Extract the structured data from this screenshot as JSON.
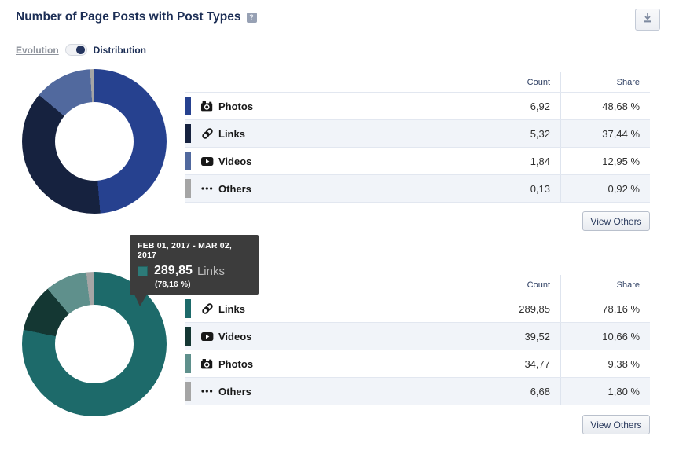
{
  "header": {
    "title": "Number of Page Posts with Post Types",
    "help_icon_glyph": "?"
  },
  "toggle": {
    "left": "Evolution",
    "right": "Distribution",
    "state": "right"
  },
  "tooltip": {
    "date_range": "FEB 01, 2017 - MAR 02, 2017",
    "value": "289,85",
    "label": "Links",
    "share": "(78,16 %)",
    "swatch_color": "#2d7b79"
  },
  "chart_data": [
    {
      "type": "pie",
      "subtype": "donut",
      "categories": [
        "Photos",
        "Links",
        "Videos",
        "Others"
      ],
      "values": [
        6.92,
        5.32,
        1.84,
        0.13
      ],
      "shares_pct": [
        48.68,
        37.44,
        12.95,
        0.92
      ],
      "colors": [
        "#26418f",
        "#16223f",
        "#51699e",
        "#a5a5a5"
      ],
      "legend_position": "table-right"
    },
    {
      "type": "pie",
      "subtype": "donut",
      "categories": [
        "Links",
        "Videos",
        "Photos",
        "Others"
      ],
      "values": [
        289.85,
        39.52,
        34.77,
        6.68
      ],
      "shares_pct": [
        78.16,
        10.66,
        9.38,
        1.8
      ],
      "colors": [
        "#1d6a6a",
        "#143733",
        "#5f908c",
        "#a5a5a5"
      ],
      "legend_position": "table-right"
    }
  ],
  "sections": [
    {
      "table": {
        "headers": {
          "count": "Count",
          "share": "Share"
        },
        "rows": [
          {
            "icon": "camera-icon",
            "label": "Photos",
            "count": "6,92",
            "share": "48,68 %",
            "color": "#26418f"
          },
          {
            "icon": "link-icon",
            "label": "Links",
            "count": "5,32",
            "share": "37,44 %",
            "color": "#16223f"
          },
          {
            "icon": "play-icon",
            "label": "Videos",
            "count": "1,84",
            "share": "12,95 %",
            "color": "#51699e"
          },
          {
            "icon": "dots-icon",
            "label": "Others",
            "count": "0,13",
            "share": "0,92 %",
            "color": "#a5a5a5"
          }
        ]
      },
      "view_others": "View Others"
    },
    {
      "table": {
        "headers": {
          "count": "Count",
          "share": "Share"
        },
        "rows": [
          {
            "icon": "link-icon",
            "label": "Links",
            "count": "289,85",
            "share": "78,16 %",
            "color": "#1d6a6a"
          },
          {
            "icon": "play-icon",
            "label": "Videos",
            "count": "39,52",
            "share": "10,66 %",
            "color": "#143733"
          },
          {
            "icon": "camera-icon",
            "label": "Photos",
            "count": "34,77",
            "share": "9,38 %",
            "color": "#5f908c"
          },
          {
            "icon": "dots-icon",
            "label": "Others",
            "count": "6,68",
            "share": "1,80 %",
            "color": "#a5a5a5"
          }
        ]
      },
      "view_others": "View Others"
    }
  ]
}
